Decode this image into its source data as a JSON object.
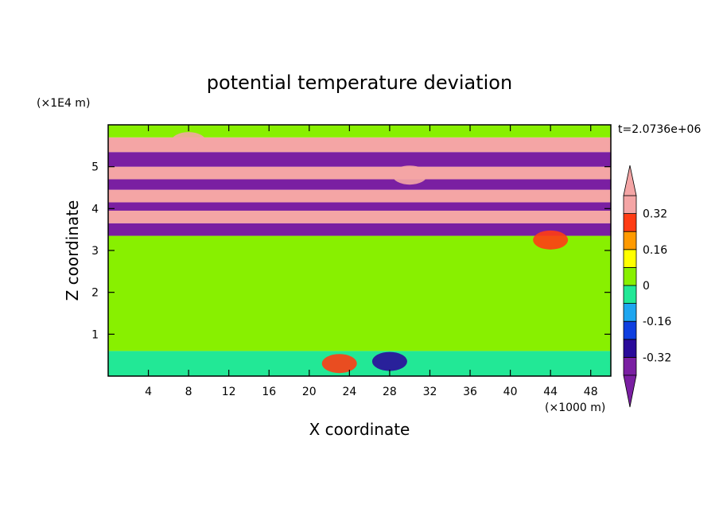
{
  "chart_data": {
    "type": "heatmap",
    "title": "potential temperature deviation",
    "xlabel": "X coordinate",
    "ylabel": "Z coordinate",
    "x_unit": "(×1000 m)",
    "y_unit": "(×1E4 m)",
    "time_label": "t=2.0736e+06",
    "xlim": [
      0,
      50
    ],
    "ylim": [
      0,
      6
    ],
    "x_ticks": [
      4,
      8,
      12,
      16,
      20,
      24,
      28,
      32,
      36,
      40,
      44,
      48
    ],
    "y_ticks": [
      1,
      2,
      3,
      4,
      5
    ],
    "colorbar": {
      "levels": [
        -0.4,
        -0.32,
        -0.24,
        -0.16,
        -0.08,
        0,
        0.08,
        0.16,
        0.24,
        0.32,
        0.4
      ],
      "labels": [
        "0.32",
        "0.16",
        "0",
        "-0.16",
        "-0.32"
      ],
      "label_values": [
        0.32,
        0.16,
        0,
        -0.16,
        -0.32
      ],
      "colors": [
        "#7a1fa2",
        "#2a0b9a",
        "#0f3fe0",
        "#1ea6f0",
        "#22e896",
        "#88f000",
        "#ffff00",
        "#ff9a00",
        "#ff3c14",
        "#f4a5a5"
      ],
      "under_color": "#7a1fa2",
      "over_color": "#f4a5a5"
    },
    "bands": [
      {
        "z0": 0.0,
        "z1": 0.6,
        "value": -0.05
      },
      {
        "z0": 0.6,
        "z1": 3.35,
        "value": 0.05
      },
      {
        "z0": 3.35,
        "z1": 3.65,
        "value": -0.45
      },
      {
        "z0": 3.65,
        "z1": 3.95,
        "value": 0.45
      },
      {
        "z0": 3.95,
        "z1": 4.15,
        "value": -0.45
      },
      {
        "z0": 4.15,
        "z1": 4.45,
        "value": 0.45
      },
      {
        "z0": 4.45,
        "z1": 4.7,
        "value": -0.45
      },
      {
        "z0": 4.7,
        "z1": 5.0,
        "value": 0.45
      },
      {
        "z0": 5.0,
        "z1": 5.35,
        "value": -0.45
      },
      {
        "z0": 5.35,
        "z1": 5.7,
        "value": 0.45
      },
      {
        "z0": 5.7,
        "z1": 6.0,
        "value": 0.05
      }
    ],
    "features": [
      {
        "x": 23,
        "z": 0.3,
        "value": 0.3
      },
      {
        "x": 28,
        "z": 0.35,
        "value": -0.3
      },
      {
        "x": 8,
        "z": 5.6,
        "value": 0.45
      },
      {
        "x": 30,
        "z": 4.8,
        "value": 0.45
      },
      {
        "x": 44,
        "z": 3.25,
        "value": 0.3
      }
    ]
  }
}
